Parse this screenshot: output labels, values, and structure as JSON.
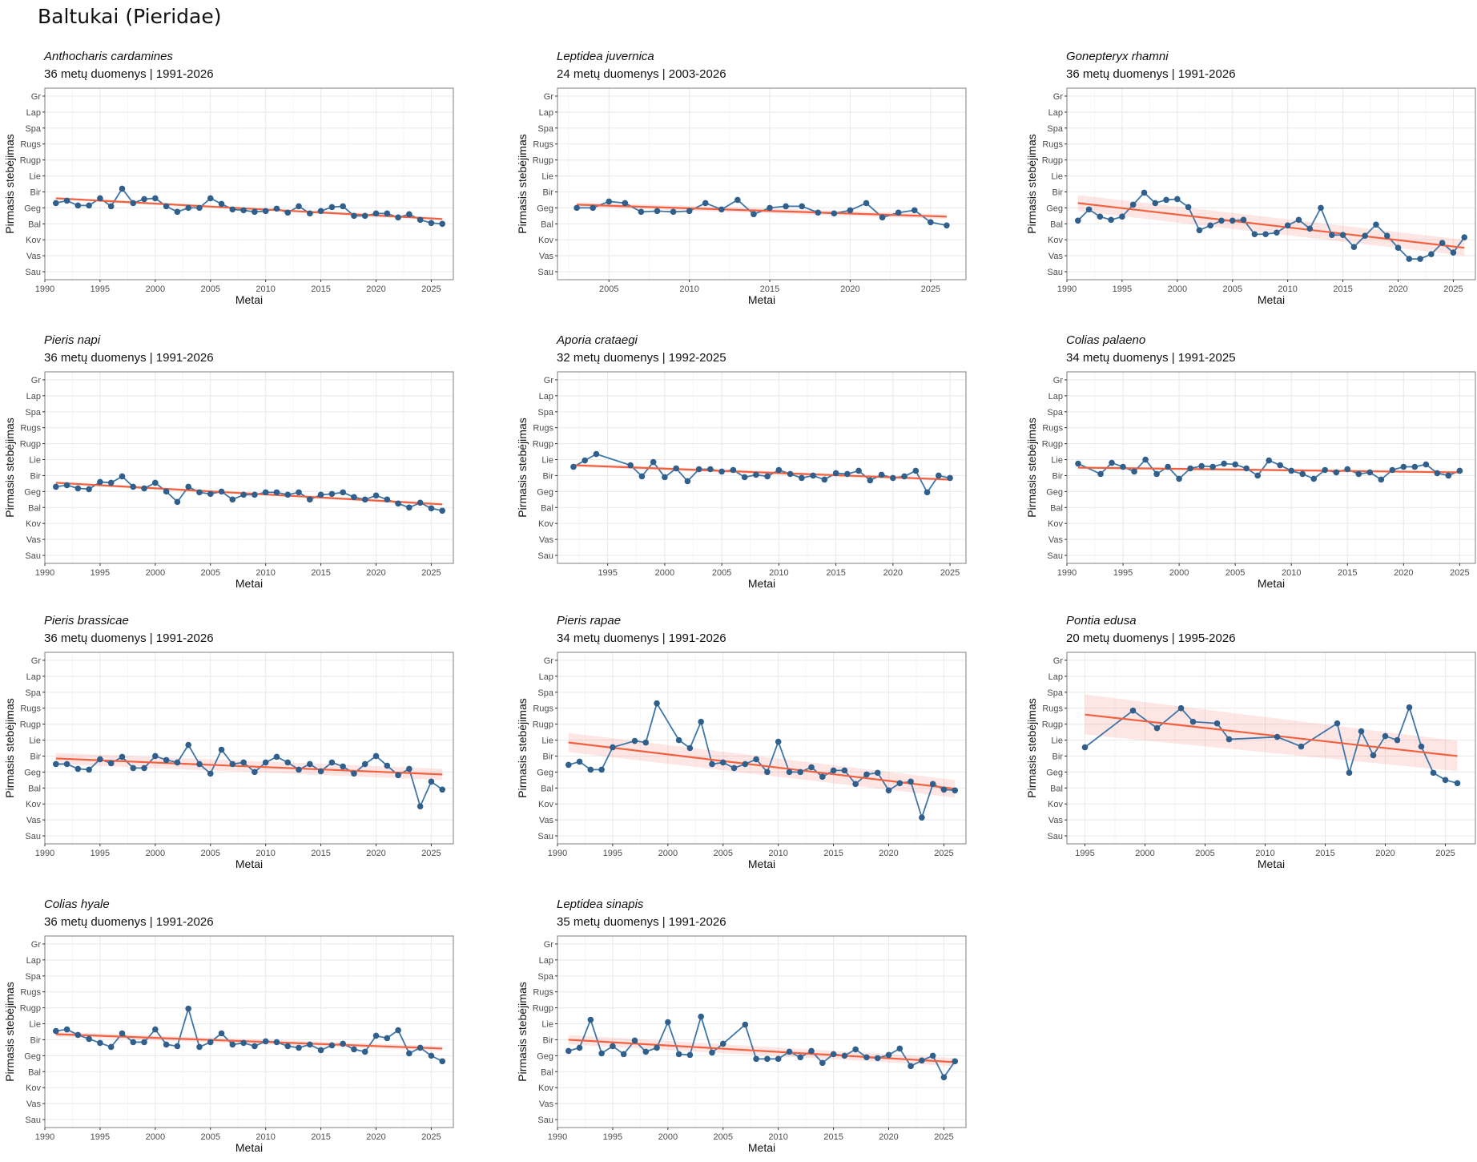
{
  "page_title": "Baltukai (Pieridae)",
  "chart_data": [
    {
      "type": "line",
      "title": "Anthocharis cardamines",
      "subtitle": "36 metų duomenys  |  1991-2026",
      "xlabel": "Metai",
      "ylabel": "Pirmasis stebėjimas",
      "xlim": [
        1990,
        2027
      ],
      "xticks": [
        1990,
        1995,
        2000,
        2005,
        2010,
        2015,
        2020,
        2025
      ],
      "ylim": [
        0.5,
        12.5
      ],
      "yticks": [
        "Sau",
        "Vas",
        "Kov",
        "Bal",
        "Geg",
        "Bir",
        "Lie",
        "Rugp",
        "Rugs",
        "Spa",
        "Lap",
        "Gr"
      ],
      "x": [
        1991,
        1992,
        1993,
        1994,
        1995,
        1996,
        1997,
        1998,
        1999,
        2000,
        2001,
        2002,
        2003,
        2004,
        2005,
        2006,
        2007,
        2008,
        2009,
        2010,
        2011,
        2012,
        2013,
        2014,
        2015,
        2016,
        2017,
        2018,
        2019,
        2020,
        2021,
        2022,
        2023,
        2024,
        2025,
        2026
      ],
      "y": [
        5.3,
        5.45,
        5.15,
        5.15,
        5.6,
        5.1,
        6.2,
        5.3,
        5.55,
        5.6,
        5.1,
        4.75,
        5.0,
        5.0,
        5.6,
        5.25,
        4.9,
        4.85,
        4.75,
        4.8,
        4.95,
        4.7,
        5.1,
        4.65,
        4.8,
        5.05,
        5.1,
        4.5,
        4.5,
        4.65,
        4.65,
        4.4,
        4.6,
        4.25,
        4.05,
        4.0
      ],
      "trend": [
        5.6,
        4.3
      ],
      "ci": [
        0.08,
        0.08
      ]
    },
    {
      "type": "line",
      "title": "Leptidea juvernica",
      "subtitle": "24 metų duomenys  |  2003-2026",
      "xlabel": "Metai",
      "ylabel": "Pirmasis stebėjimas",
      "xlim": [
        2001.8,
        2027.2
      ],
      "xticks": [
        2005,
        2010,
        2015,
        2020,
        2025
      ],
      "ylim": [
        0.5,
        12.5
      ],
      "yticks": [
        "Sau",
        "Vas",
        "Kov",
        "Bal",
        "Geg",
        "Bir",
        "Lie",
        "Rugp",
        "Rugs",
        "Spa",
        "Lap",
        "Gr"
      ],
      "x": [
        2003,
        2004,
        2005,
        2006,
        2007,
        2008,
        2009,
        2010,
        2011,
        2012,
        2013,
        2014,
        2015,
        2016,
        2017,
        2018,
        2019,
        2020,
        2021,
        2022,
        2023,
        2024,
        2025,
        2026
      ],
      "y": [
        5.0,
        5.0,
        5.4,
        5.3,
        4.75,
        4.8,
        4.75,
        4.8,
        5.3,
        4.9,
        5.5,
        4.6,
        5.0,
        5.1,
        5.1,
        4.7,
        4.65,
        4.85,
        5.3,
        4.4,
        4.7,
        4.85,
        4.1,
        3.9
      ],
      "trend": [
        5.2,
        4.45
      ],
      "ci": [
        0.15,
        0.15
      ]
    },
    {
      "type": "line",
      "title": "Gonepteryx rhamni",
      "subtitle": "36 metų duomenys  |  1991-2026",
      "xlabel": "Metai",
      "ylabel": "Pirmasis stebėjimas",
      "xlim": [
        1990,
        2027
      ],
      "xticks": [
        1990,
        1995,
        2000,
        2005,
        2010,
        2015,
        2020,
        2025
      ],
      "ylim": [
        0.5,
        12.5
      ],
      "yticks": [
        "Sau",
        "Vas",
        "Kov",
        "Bal",
        "Geg",
        "Bir",
        "Lie",
        "Rugp",
        "Rugs",
        "Spa",
        "Lap",
        "Gr"
      ],
      "x": [
        1991,
        1992,
        1993,
        1994,
        1995,
        1996,
        1997,
        1998,
        1999,
        2000,
        2001,
        2002,
        2003,
        2004,
        2005,
        2006,
        2007,
        2008,
        2009,
        2010,
        2011,
        2012,
        2013,
        2014,
        2015,
        2016,
        2017,
        2018,
        2019,
        2020,
        2021,
        2022,
        2023,
        2024,
        2025,
        2026
      ],
      "y": [
        4.2,
        4.9,
        4.45,
        4.25,
        4.45,
        5.2,
        5.95,
        5.3,
        5.5,
        5.55,
        5.05,
        3.6,
        3.9,
        4.2,
        4.2,
        4.25,
        3.35,
        3.35,
        3.45,
        3.9,
        4.25,
        3.7,
        5.0,
        3.3,
        3.3,
        2.55,
        3.25,
        3.95,
        3.25,
        2.5,
        1.8,
        1.8,
        2.1,
        2.8,
        2.2,
        3.15
      ],
      "trend": [
        5.3,
        2.5
      ],
      "ci": [
        0.5,
        0.5
      ]
    },
    {
      "type": "line",
      "title": "Pieris napi",
      "subtitle": "36 metų duomenys  |  1991-2026",
      "xlabel": "Metai",
      "ylabel": "Pirmasis stebėjimas",
      "xlim": [
        1990,
        2027
      ],
      "xticks": [
        1990,
        1995,
        2000,
        2005,
        2010,
        2015,
        2020,
        2025
      ],
      "ylim": [
        0.5,
        12.5
      ],
      "yticks": [
        "Sau",
        "Vas",
        "Kov",
        "Bal",
        "Geg",
        "Bir",
        "Lie",
        "Rugp",
        "Rugs",
        "Spa",
        "Lap",
        "Gr"
      ],
      "x": [
        1991,
        1992,
        1993,
        1994,
        1995,
        1996,
        1997,
        1998,
        1999,
        2000,
        2001,
        2002,
        2003,
        2004,
        2005,
        2006,
        2007,
        2008,
        2009,
        2010,
        2011,
        2012,
        2013,
        2014,
        2015,
        2016,
        2017,
        2018,
        2019,
        2020,
        2021,
        2022,
        2023,
        2024,
        2025,
        2026
      ],
      "y": [
        5.3,
        5.4,
        5.2,
        5.15,
        5.6,
        5.55,
        5.95,
        5.3,
        5.2,
        5.55,
        5.0,
        4.35,
        5.3,
        4.95,
        4.85,
        5.0,
        4.5,
        4.8,
        4.8,
        4.95,
        4.95,
        4.8,
        4.95,
        4.5,
        4.8,
        4.85,
        4.95,
        4.65,
        4.5,
        4.75,
        4.5,
        4.25,
        4.0,
        4.3,
        3.95,
        3.8
      ],
      "trend": [
        5.55,
        4.2
      ],
      "ci": [
        0.08,
        0.08
      ]
    },
    {
      "type": "line",
      "title": "Aporia crataegi",
      "subtitle": "32 metų duomenys  |  1992-2025",
      "xlabel": "Metai",
      "ylabel": "Pirmasis stebėjimas",
      "xlim": [
        1990.6,
        2026.4
      ],
      "xticks": [
        1995,
        2000,
        2005,
        2010,
        2015,
        2020,
        2025
      ],
      "ylim": [
        0.5,
        12.5
      ],
      "yticks": [
        "Sau",
        "Vas",
        "Kov",
        "Bal",
        "Geg",
        "Bir",
        "Lie",
        "Rugp",
        "Rugs",
        "Spa",
        "Lap",
        "Gr"
      ],
      "x": [
        1992,
        1993,
        1994,
        1997,
        1998,
        1999,
        2000,
        2001,
        2002,
        2003,
        2004,
        2005,
        2006,
        2007,
        2008,
        2009,
        2010,
        2011,
        2012,
        2013,
        2014,
        2015,
        2016,
        2017,
        2018,
        2019,
        2020,
        2021,
        2022,
        2023,
        2024,
        2025
      ],
      "y": [
        6.55,
        6.95,
        7.35,
        6.65,
        5.95,
        6.85,
        5.9,
        6.45,
        5.65,
        6.4,
        6.4,
        6.25,
        6.35,
        5.9,
        6.05,
        5.95,
        6.35,
        6.1,
        5.85,
        6.0,
        5.75,
        6.15,
        6.1,
        6.3,
        5.7,
        6.05,
        5.85,
        5.95,
        6.3,
        4.95,
        6.0,
        5.85
      ],
      "trend": [
        6.65,
        5.75
      ],
      "ci": [
        0.1,
        0.1
      ]
    },
    {
      "type": "line",
      "title": "Colias palaeno",
      "subtitle": "34 metų duomenys  |  1991-2025",
      "xlabel": "Metai",
      "ylabel": "Pirmasis stebėjimas",
      "xlim": [
        1990,
        2026.4
      ],
      "xticks": [
        1990,
        1995,
        2000,
        2005,
        2010,
        2015,
        2020,
        2025
      ],
      "ylim": [
        0.5,
        12.5
      ],
      "yticks": [
        "Sau",
        "Vas",
        "Kov",
        "Bal",
        "Geg",
        "Bir",
        "Lie",
        "Rugp",
        "Rugs",
        "Spa",
        "Lap",
        "Gr"
      ],
      "x": [
        1991,
        1993,
        1994,
        1995,
        1996,
        1997,
        1998,
        1999,
        2000,
        2001,
        2002,
        2003,
        2004,
        2005,
        2006,
        2007,
        2008,
        2009,
        2010,
        2011,
        2012,
        2013,
        2014,
        2015,
        2016,
        2017,
        2018,
        2019,
        2020,
        2021,
        2022,
        2023,
        2024,
        2025
      ],
      "y": [
        6.75,
        6.1,
        6.8,
        6.55,
        6.25,
        7.0,
        6.1,
        6.55,
        5.8,
        6.45,
        6.6,
        6.55,
        6.75,
        6.7,
        6.45,
        6.0,
        6.95,
        6.65,
        6.3,
        6.1,
        5.8,
        6.35,
        6.2,
        6.4,
        6.1,
        6.2,
        5.75,
        6.35,
        6.55,
        6.55,
        6.7,
        6.15,
        6.0,
        6.3
      ],
      "trend": [
        6.5,
        6.2
      ],
      "ci": [
        0.08,
        0.08
      ]
    },
    {
      "type": "line",
      "title": "Pieris brassicae",
      "subtitle": "36 metų duomenys  |  1991-2026",
      "xlabel": "Metai",
      "ylabel": "Pirmasis stebėjimas",
      "xlim": [
        1990,
        2027
      ],
      "xticks": [
        1990,
        1995,
        2000,
        2005,
        2010,
        2015,
        2020,
        2025
      ],
      "ylim": [
        0.5,
        12.5
      ],
      "yticks": [
        "Sau",
        "Vas",
        "Kov",
        "Bal",
        "Geg",
        "Bir",
        "Lie",
        "Rugp",
        "Rugs",
        "Spa",
        "Lap",
        "Gr"
      ],
      "x": [
        1991,
        1992,
        1993,
        1994,
        1995,
        1996,
        1997,
        1998,
        1999,
        2000,
        2001,
        2002,
        2003,
        2004,
        2005,
        2006,
        2007,
        2008,
        2009,
        2010,
        2011,
        2012,
        2013,
        2014,
        2015,
        2016,
        2017,
        2018,
        2019,
        2020,
        2021,
        2022,
        2023,
        2024,
        2025,
        2026
      ],
      "y": [
        5.5,
        5.5,
        5.2,
        5.15,
        5.8,
        5.55,
        5.95,
        5.25,
        5.25,
        6.0,
        5.75,
        5.6,
        6.7,
        5.5,
        4.9,
        6.4,
        5.5,
        5.6,
        5.0,
        5.6,
        5.95,
        5.6,
        5.15,
        5.5,
        5.05,
        5.6,
        5.35,
        4.9,
        5.5,
        6.0,
        5.4,
        4.8,
        5.2,
        2.85,
        4.4,
        3.9
      ],
      "trend": [
        5.85,
        4.85
      ],
      "ci": [
        0.35,
        0.35
      ]
    },
    {
      "type": "line",
      "title": "Pieris rapae",
      "subtitle": "34 metų duomenys  |  1991-2026",
      "xlabel": "Metai",
      "ylabel": "Pirmasis stebėjimas",
      "xlim": [
        1990,
        2027
      ],
      "xticks": [
        1990,
        1995,
        2000,
        2005,
        2010,
        2015,
        2020,
        2025
      ],
      "ylim": [
        0.5,
        12.5
      ],
      "yticks": [
        "Sau",
        "Vas",
        "Kov",
        "Bal",
        "Geg",
        "Bir",
        "Lie",
        "Rugp",
        "Rugs",
        "Spa",
        "Lap",
        "Gr"
      ],
      "x": [
        1991,
        1992,
        1993,
        1994,
        1995,
        1997,
        1998,
        1999,
        2001,
        2002,
        2003,
        2004,
        2005,
        2006,
        2007,
        2008,
        2009,
        2010,
        2011,
        2012,
        2013,
        2014,
        2015,
        2016,
        2017,
        2018,
        2019,
        2020,
        2021,
        2022,
        2023,
        2024,
        2025,
        2026
      ],
      "y": [
        5.45,
        5.65,
        5.15,
        5.15,
        6.55,
        6.95,
        6.85,
        9.3,
        7.0,
        6.5,
        8.15,
        5.5,
        5.6,
        5.25,
        5.5,
        5.8,
        5.0,
        6.9,
        5.0,
        5.0,
        5.3,
        4.7,
        5.1,
        5.1,
        4.25,
        4.85,
        4.95,
        3.85,
        4.3,
        4.4,
        2.15,
        4.25,
        3.9,
        3.85
      ],
      "trend": [
        6.85,
        3.95
      ],
      "ci": [
        0.6,
        0.55
      ]
    },
    {
      "type": "line",
      "title": "Pontia edusa",
      "subtitle": "20 metų duomenys  |  1995-2026",
      "xlabel": "Metai",
      "ylabel": "Pirmasis stebėjimas",
      "xlim": [
        1993.5,
        2027.5
      ],
      "xticks": [
        1995,
        2000,
        2005,
        2010,
        2015,
        2020,
        2025
      ],
      "ylim": [
        0.5,
        12.5
      ],
      "yticks": [
        "Sau",
        "Vas",
        "Kov",
        "Bal",
        "Geg",
        "Bir",
        "Lie",
        "Rugp",
        "Rugs",
        "Spa",
        "Lap",
        "Gr"
      ],
      "x": [
        1995,
        1999,
        2001,
        2003,
        2004,
        2006,
        2007,
        2011,
        2013,
        2016,
        2017,
        2018,
        2019,
        2020,
        2021,
        2022,
        2023,
        2024,
        2025,
        2026
      ],
      "y": [
        6.55,
        8.85,
        7.75,
        9.0,
        8.15,
        8.05,
        7.05,
        7.2,
        6.6,
        8.05,
        4.95,
        7.55,
        6.05,
        7.25,
        7.0,
        9.05,
        6.6,
        4.95,
        4.5,
        4.3
      ],
      "trend": [
        8.6,
        6.0
      ],
      "ci": [
        1.25,
        0.95
      ]
    },
    {
      "type": "line",
      "title": "Colias hyale",
      "subtitle": "36 metų duomenys  |  1991-2026",
      "xlabel": "Metai",
      "ylabel": "Pirmasis stebėjimas",
      "xlim": [
        1990,
        2027
      ],
      "xticks": [
        1990,
        1995,
        2000,
        2005,
        2010,
        2015,
        2020,
        2025
      ],
      "ylim": [
        0.5,
        12.5
      ],
      "yticks": [
        "Sau",
        "Vas",
        "Kov",
        "Bal",
        "Geg",
        "Bir",
        "Lie",
        "Rugp",
        "Rugs",
        "Spa",
        "Lap",
        "Gr"
      ],
      "x": [
        1991,
        1992,
        1993,
        1994,
        1995,
        1996,
        1997,
        1998,
        1999,
        2000,
        2001,
        2002,
        2003,
        2004,
        2005,
        2006,
        2007,
        2008,
        2009,
        2010,
        2011,
        2012,
        2013,
        2014,
        2015,
        2016,
        2017,
        2018,
        2019,
        2020,
        2021,
        2022,
        2023,
        2024,
        2025,
        2026
      ],
      "y": [
        6.55,
        6.65,
        6.3,
        6.05,
        5.8,
        5.55,
        6.4,
        5.85,
        5.85,
        6.65,
        5.7,
        5.6,
        7.95,
        5.55,
        5.85,
        6.4,
        5.7,
        5.8,
        5.6,
        5.9,
        5.85,
        5.6,
        5.5,
        5.7,
        5.35,
        5.65,
        5.75,
        5.4,
        5.25,
        6.25,
        6.1,
        6.6,
        5.15,
        5.5,
        5.0,
        4.65
      ],
      "trend": [
        6.35,
        5.45
      ],
      "ci": [
        0.15,
        0.15
      ]
    },
    {
      "type": "line",
      "title": "Leptidea sinapis",
      "subtitle": "35 metų duomenys  |  1991-2026",
      "xlabel": "Metai",
      "ylabel": "Pirmasis stebėjimas",
      "xlim": [
        1990,
        2027
      ],
      "xticks": [
        1990,
        1995,
        2000,
        2005,
        2010,
        2015,
        2020,
        2025
      ],
      "ylim": [
        0.5,
        12.5
      ],
      "yticks": [
        "Sau",
        "Vas",
        "Kov",
        "Bal",
        "Geg",
        "Bir",
        "Lie",
        "Rugp",
        "Rugs",
        "Spa",
        "Lap",
        "Gr"
      ],
      "x": [
        1991,
        1992,
        1993,
        1994,
        1995,
        1996,
        1997,
        1998,
        1999,
        2000,
        2001,
        2002,
        2003,
        2004,
        2005,
        2007,
        2008,
        2009,
        2010,
        2011,
        2012,
        2013,
        2014,
        2015,
        2016,
        2017,
        2018,
        2019,
        2020,
        2021,
        2022,
        2023,
        2024,
        2025,
        2026
      ],
      "y": [
        5.3,
        5.5,
        7.25,
        5.15,
        5.6,
        5.1,
        5.95,
        5.25,
        5.5,
        7.1,
        5.1,
        5.05,
        7.45,
        5.2,
        5.75,
        6.95,
        4.8,
        4.8,
        4.8,
        5.25,
        4.9,
        5.3,
        4.55,
        5.1,
        5.0,
        5.4,
        4.9,
        4.85,
        5.05,
        5.45,
        4.35,
        4.7,
        5.0,
        3.65,
        4.65
      ],
      "trend": [
        6.0,
        4.6
      ],
      "ci": [
        0.3,
        0.25
      ]
    }
  ]
}
